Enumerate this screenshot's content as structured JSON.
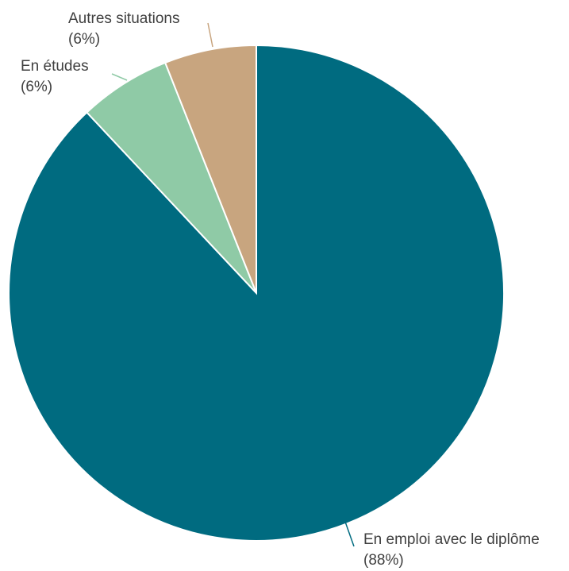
{
  "chart_data": {
    "type": "pie",
    "title": "",
    "slices": [
      {
        "label": "En emploi avec le diplôme",
        "value": 88,
        "value_label": "(88%)",
        "color": "#006b80"
      },
      {
        "label": "En études",
        "value": 6,
        "value_label": "(6%)",
        "color": "#8fcaa6"
      },
      {
        "label": "Autres situations",
        "value": 6,
        "value_label": "(6%)",
        "color": "#c8a57f"
      }
    ],
    "start_angle_deg": 0,
    "direction": "clockwise",
    "legend": "none",
    "labels": "outside-with-leader-lines"
  }
}
